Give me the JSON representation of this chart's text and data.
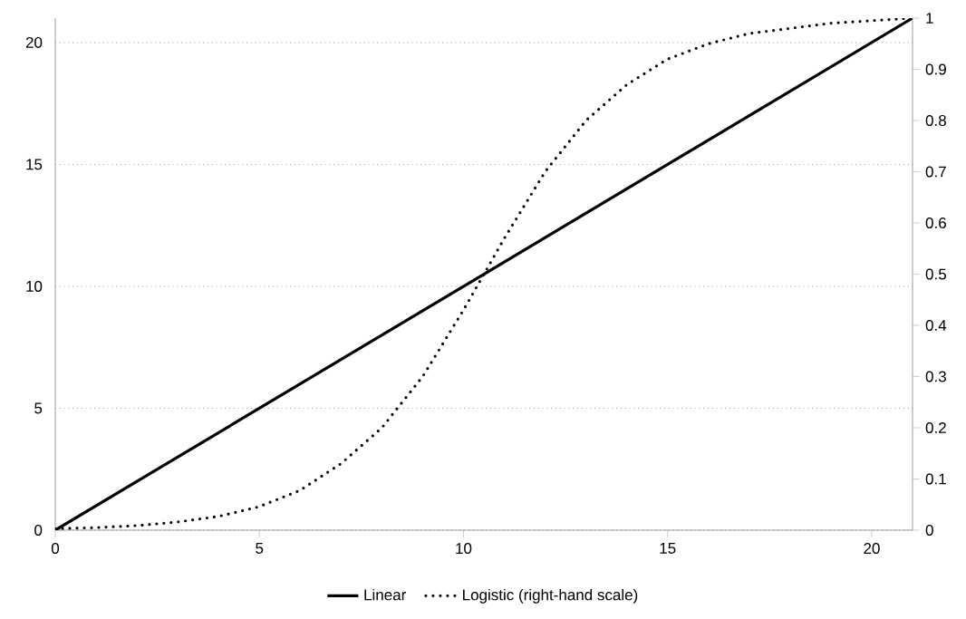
{
  "chart_data": {
    "type": "line",
    "xlim": [
      0,
      21
    ],
    "xticks": [
      0,
      5,
      10,
      15,
      20
    ],
    "ylim": [
      0,
      21
    ],
    "yticks": [
      0,
      5,
      10,
      15,
      20
    ],
    "y2lim": [
      0,
      1
    ],
    "y2ticks": [
      0,
      0.1,
      0.2,
      0.3,
      0.4,
      0.5,
      0.6,
      0.7,
      0.8,
      0.9,
      1
    ],
    "grid": "y",
    "legend": "bottom",
    "series": [
      {
        "name": "Linear",
        "color": "#000000",
        "line_style": "solid",
        "x": [
          0,
          21
        ],
        "values": [
          0,
          21
        ]
      },
      {
        "name": "Logistic (right-hand scale)",
        "color": "#000000",
        "line_style": "dotted",
        "axis": "y2",
        "x": [
          0,
          1,
          2,
          3,
          4,
          5,
          6,
          7,
          8,
          9,
          10,
          10.5,
          11,
          12,
          13,
          14,
          15,
          16,
          17,
          18,
          19,
          20,
          21
        ],
        "values": [
          0.003,
          0.005,
          0.009,
          0.016,
          0.027,
          0.046,
          0.078,
          0.13,
          0.2,
          0.3,
          0.43,
          0.5,
          0.57,
          0.7,
          0.8,
          0.87,
          0.92,
          0.95,
          0.97,
          0.98,
          0.99,
          0.995,
          1
        ]
      }
    ]
  }
}
